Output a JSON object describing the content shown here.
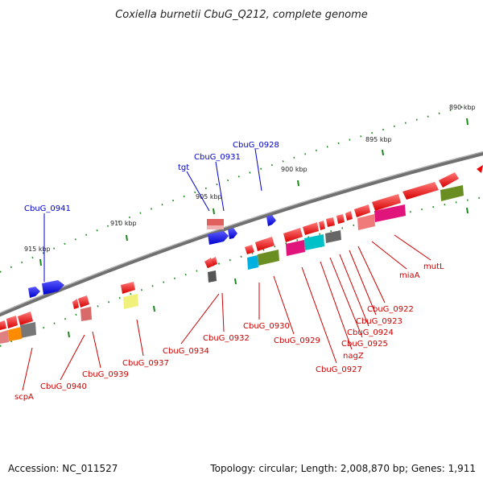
{
  "title": "Coxiella burnetii CbuG_Q212, complete genome",
  "accession": "Accession: NC_011527",
  "topology": "Topology: circular; Length: 2,008,870 bp; Genes: 1,911",
  "kbp_labels": [
    "890 kbp",
    "895 kbp",
    "900 kbp",
    "905 kbp",
    "910 kbp",
    "915 kbp"
  ],
  "blue_labels": [
    "CbuG_0941",
    "tgt",
    "CbuG_0931",
    "CbuG_0928"
  ],
  "red_labels": [
    "scpA",
    "CbuG_0940",
    "CbuG_0939",
    "CbuG_0937",
    "CbuG_0934",
    "CbuG_0932",
    "CbuG_0930",
    "CbuG_0929",
    "CbuG_0927",
    "nagZ",
    "CbuG_0925",
    "CbuG_0924",
    "CbuG_0923",
    "CbuG_0922",
    "miaA",
    "mutL"
  ],
  "colors": {
    "forward": "#0000ee",
    "reverse": "#ee0000",
    "backbone": "#808080",
    "tick": "#1a8a1a",
    "blue_label": "#0000cc",
    "red_label": "#cc0000"
  }
}
